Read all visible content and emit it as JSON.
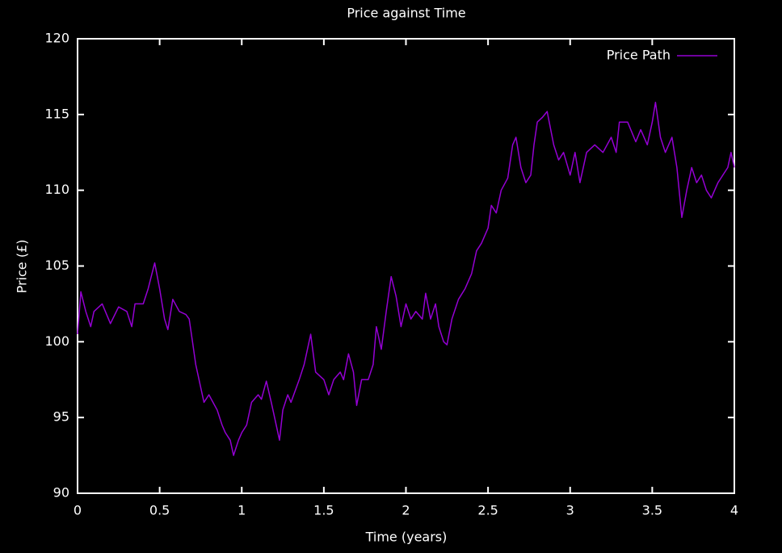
{
  "chart_data": {
    "type": "line",
    "title": "Price against Time",
    "x_label": "Time (years)",
    "y_label": "Price (£)",
    "x": [
      0,
      0.02,
      0.05,
      0.08,
      0.1,
      0.15,
      0.2,
      0.25,
      0.3,
      0.33,
      0.35,
      0.4,
      0.43,
      0.47,
      0.5,
      0.53,
      0.55,
      0.58,
      0.62,
      0.66,
      0.68,
      0.7,
      0.72,
      0.75,
      0.77,
      0.8,
      0.85,
      0.88,
      0.9,
      0.93,
      0.95,
      0.98,
      1.0,
      1.03,
      1.06,
      1.1,
      1.12,
      1.15,
      1.18,
      1.2,
      1.23,
      1.25,
      1.28,
      1.3,
      1.35,
      1.38,
      1.42,
      1.45,
      1.5,
      1.53,
      1.56,
      1.6,
      1.62,
      1.65,
      1.68,
      1.7,
      1.73,
      1.77,
      1.8,
      1.82,
      1.85,
      1.88,
      1.91,
      1.94,
      1.97,
      2.0,
      2.03,
      2.06,
      2.1,
      2.12,
      2.15,
      2.18,
      2.2,
      2.23,
      2.25,
      2.28,
      2.32,
      2.36,
      2.4,
      2.43,
      2.46,
      2.5,
      2.52,
      2.55,
      2.58,
      2.62,
      2.65,
      2.67,
      2.7,
      2.73,
      2.76,
      2.78,
      2.8,
      2.83,
      2.86,
      2.9,
      2.93,
      2.96,
      3.0,
      3.03,
      3.06,
      3.1,
      3.15,
      3.2,
      3.25,
      3.28,
      3.3,
      3.35,
      3.4,
      3.43,
      3.47,
      3.5,
      3.52,
      3.55,
      3.58,
      3.62,
      3.65,
      3.68,
      3.71,
      3.74,
      3.77,
      3.8,
      3.83,
      3.86,
      3.9,
      3.93,
      3.96,
      3.98,
      4.0
    ],
    "series": [
      {
        "name": "Price Path",
        "color": "#9400d3",
        "values": [
          100.5,
          103.3,
          102,
          101,
          102,
          102.5,
          101.2,
          102.3,
          102,
          101,
          102.5,
          102.5,
          103.5,
          105.2,
          103.5,
          101.5,
          100.8,
          102.8,
          102,
          101.8,
          101.5,
          100,
          98.5,
          97,
          96,
          96.5,
          95.5,
          94.5,
          94,
          93.5,
          92.5,
          93.5,
          94,
          94.5,
          96,
          96.5,
          96.2,
          97.4,
          96,
          95,
          93.5,
          95.5,
          96.5,
          96,
          97.5,
          98.5,
          100.5,
          98,
          97.5,
          96.5,
          97.5,
          98,
          97.5,
          99.2,
          98,
          95.8,
          97.5,
          97.5,
          98.5,
          101,
          99.5,
          102,
          104.3,
          103,
          101,
          102.5,
          101.5,
          102,
          101.5,
          103.2,
          101.5,
          102.5,
          101,
          100,
          99.8,
          101.5,
          102.8,
          103.5,
          104.5,
          106,
          106.5,
          107.5,
          109,
          108.5,
          110,
          110.8,
          113,
          113.5,
          111.5,
          110.5,
          111,
          113,
          114.5,
          114.8,
          115.2,
          113,
          112,
          112.5,
          111,
          112.5,
          110.5,
          112.5,
          113,
          112.5,
          113.5,
          112.5,
          114.5,
          114.5,
          113.2,
          114,
          113,
          114.5,
          115.8,
          113.5,
          112.5,
          113.5,
          111.5,
          108.2,
          110,
          111.5,
          110.5,
          111,
          110,
          109.5,
          110.5,
          111,
          111.5,
          112.5,
          111.5
        ]
      }
    ],
    "xlim": [
      0,
      4
    ],
    "xticks": [
      0,
      0.5,
      1,
      1.5,
      2,
      2.5,
      3,
      3.5,
      4
    ],
    "ylim": [
      90,
      120
    ],
    "yticks": [
      90,
      95,
      100,
      105,
      110,
      115,
      120
    ],
    "legend": "top-right"
  }
}
